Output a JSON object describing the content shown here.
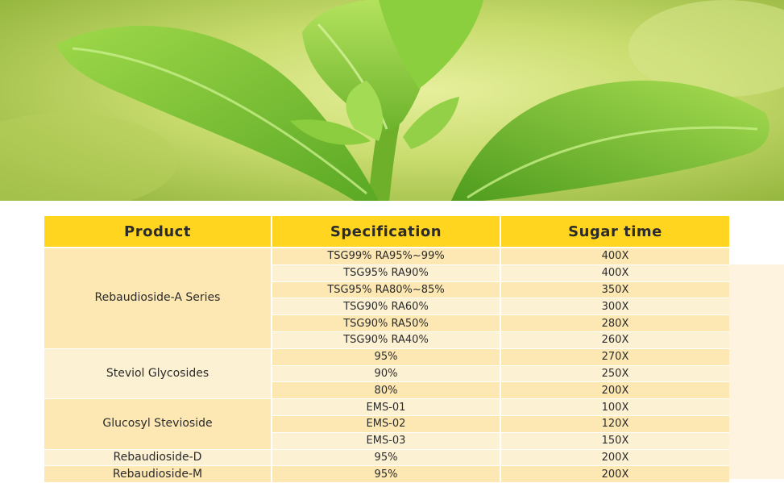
{
  "header": {
    "product": "Product",
    "specification": "Specification",
    "sugar_time": "Sugar time"
  },
  "groups": [
    {
      "product": "Rebaudioside-A Series",
      "rows": [
        {
          "spec": "TSG99% RA95%~99%",
          "sugar": "400X"
        },
        {
          "spec": "TSG95% RA90%",
          "sugar": "400X"
        },
        {
          "spec": "TSG95% RA80%~85%",
          "sugar": "350X"
        },
        {
          "spec": "TSG90% RA60%",
          "sugar": "300X"
        },
        {
          "spec": "TSG90% RA50%",
          "sugar": "280X"
        },
        {
          "spec": "TSG90% RA40%",
          "sugar": "260X"
        }
      ]
    },
    {
      "product": "Steviol Glycosides",
      "rows": [
        {
          "spec": "95%",
          "sugar": "270X"
        },
        {
          "spec": "90%",
          "sugar": "250X"
        },
        {
          "spec": "80%",
          "sugar": "200X"
        }
      ]
    },
    {
      "product": "Glucosyl Stevioside",
      "rows": [
        {
          "spec": "EMS-01",
          "sugar": "100X"
        },
        {
          "spec": "EMS-02",
          "sugar": "120X"
        },
        {
          "spec": "EMS-03",
          "sugar": "150X"
        }
      ]
    },
    {
      "product": "Rebaudioside-D",
      "rows": [
        {
          "spec": "95%",
          "sugar": "200X"
        }
      ]
    },
    {
      "product": "Rebaudioside-M",
      "rows": [
        {
          "spec": "95%",
          "sugar": "200X"
        }
      ]
    }
  ],
  "colors": {
    "header_bg": "#ffd51f",
    "row_dark": "#fde8b4",
    "row_light": "#fdf1d4",
    "leaf_green": "#7fc43a"
  }
}
